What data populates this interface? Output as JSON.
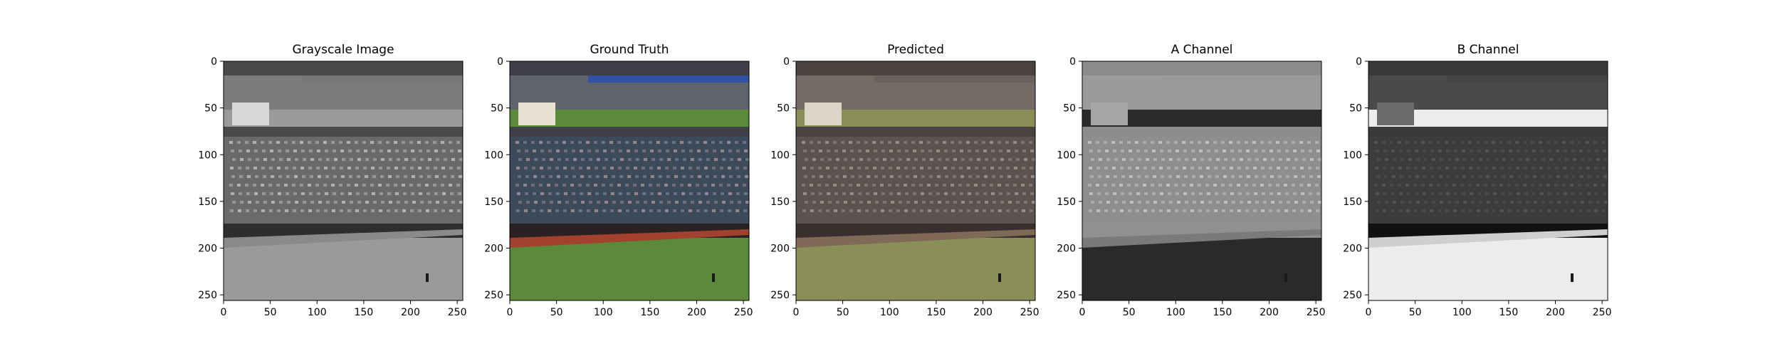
{
  "panels": [
    {
      "title": "Grayscale Image",
      "variant": "gray"
    },
    {
      "title": "Ground Truth",
      "variant": "color"
    },
    {
      "title": "Predicted",
      "variant": "pred"
    },
    {
      "title": "A Channel",
      "variant": "achan"
    },
    {
      "title": "B Channel",
      "variant": "bchan"
    }
  ],
  "x_ticks": [
    "0",
    "50",
    "100",
    "150",
    "200",
    "250"
  ],
  "y_ticks": [
    "0",
    "50",
    "100",
    "150",
    "200",
    "250"
  ],
  "axis_range": [
    0,
    256
  ],
  "tick_values": [
    0,
    50,
    100,
    150,
    200,
    250
  ]
}
